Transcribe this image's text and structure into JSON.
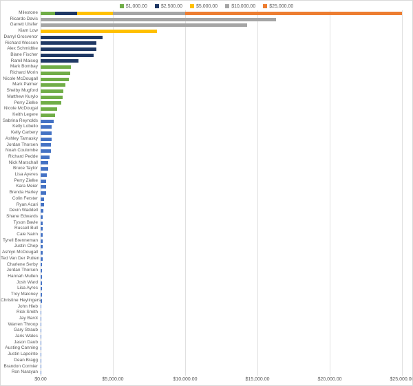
{
  "legend": {
    "position": "top-center",
    "items": [
      {
        "label": "$1,000.00",
        "color": "#70AD47"
      },
      {
        "label": "$2,500.00",
        "color": "#1F3864"
      },
      {
        "label": "$5,000.00",
        "color": "#FFC000"
      },
      {
        "label": "$10,000.00",
        "color": "#A5A5A5"
      },
      {
        "label": "$25,000.00",
        "color": "#ED7D31"
      }
    ]
  },
  "colors": {
    "tier_1000": "#70AD47",
    "tier_2500": "#1F3864",
    "tier_5000": "#FFC000",
    "tier_10000": "#A5A5A5",
    "tier_25000": "#ED7D31",
    "below_milestone": "#4472C4",
    "gridline": "#E0E0E0",
    "axis_text": "#595959"
  },
  "chart_data": {
    "type": "bar",
    "orientation": "horizontal",
    "title": "",
    "xlabel": "",
    "ylabel": "",
    "grid": true,
    "legend_position": "top",
    "xlim": [
      0,
      25000
    ],
    "x_ticks": [
      0,
      5000,
      10000,
      15000,
      20000,
      25000
    ],
    "x_tick_labels": [
      "$0.00",
      "$5,000.00",
      "$10,000.00",
      "$15,000.00",
      "$20,000.00",
      "$25,000.00"
    ],
    "rows": [
      {
        "label": "Milestone",
        "segments": [
          {
            "value": 1000,
            "color": "#70AD47"
          },
          {
            "value": 1500,
            "color": "#1F3864"
          },
          {
            "value": 2500,
            "color": "#FFC000"
          },
          {
            "value": 5000,
            "color": "#A5A5A5"
          },
          {
            "value": 15000,
            "color": "#ED7D31"
          }
        ]
      },
      {
        "label": "Ricardo Davis",
        "value": 16300,
        "color": "#A5A5A5"
      },
      {
        "label": "Garrett Ulsifer",
        "value": 14300,
        "color": "#A5A5A5"
      },
      {
        "label": "Kiam Low",
        "value": 8050,
        "color": "#FFC000"
      },
      {
        "label": "Darryl Grosvenor",
        "value": 4300,
        "color": "#1F3864"
      },
      {
        "label": "Richard Wesson",
        "value": 3875,
        "color": "#1F3864"
      },
      {
        "label": "Alex Schmidtke",
        "value": 3850,
        "color": "#1F3864"
      },
      {
        "label": "Blane Fischer",
        "value": 3650,
        "color": "#1F3864"
      },
      {
        "label": "Ramil Maisog",
        "value": 2620,
        "color": "#1F3864"
      },
      {
        "label": "Mark Bombay",
        "value": 2100,
        "color": "#70AD47"
      },
      {
        "label": "Richard Morin",
        "value": 2050,
        "color": "#70AD47"
      },
      {
        "label": "Nicole McDougall",
        "value": 1975,
        "color": "#70AD47"
      },
      {
        "label": "Mark Palmer",
        "value": 1700,
        "color": "#70AD47"
      },
      {
        "label": "Shelby Mugford",
        "value": 1560,
        "color": "#70AD47"
      },
      {
        "label": "Matthew Kurylo",
        "value": 1530,
        "color": "#70AD47"
      },
      {
        "label": "Perry Zielke",
        "value": 1420,
        "color": "#70AD47"
      },
      {
        "label": "Nicole McDougal",
        "value": 1130,
        "color": "#70AD47"
      },
      {
        "label": "Keith Legere",
        "value": 1010,
        "color": "#70AD47"
      },
      {
        "label": "Sabrina Reynolds",
        "value": 890,
        "color": "#4472C4"
      },
      {
        "label": "Kelly Lobello",
        "value": 780,
        "color": "#4472C4"
      },
      {
        "label": "Kelly Carbery",
        "value": 775,
        "color": "#4472C4"
      },
      {
        "label": "Ashley Tarnasky",
        "value": 770,
        "color": "#4472C4"
      },
      {
        "label": "Jordan Thorsen",
        "value": 730,
        "color": "#4472C4"
      },
      {
        "label": "Noah Coulombe",
        "value": 700,
        "color": "#4472C4"
      },
      {
        "label": "Richard Pedde",
        "value": 605,
        "color": "#4472C4"
      },
      {
        "label": "Nick Marschall",
        "value": 525,
        "color": "#4472C4"
      },
      {
        "label": "Bruce Taylor",
        "value": 500,
        "color": "#4472C4"
      },
      {
        "label": "Lisa Ayeres",
        "value": 420,
        "color": "#4472C4"
      },
      {
        "label": "Perry Zielke",
        "value": 400,
        "color": "#4472C4"
      },
      {
        "label": "Kara Meier",
        "value": 385,
        "color": "#4472C4"
      },
      {
        "label": "Brenda Harley",
        "value": 380,
        "color": "#4472C4"
      },
      {
        "label": "Colin Ferster",
        "value": 250,
        "color": "#4472C4"
      },
      {
        "label": "Ryan Acari",
        "value": 225,
        "color": "#4472C4"
      },
      {
        "label": "Devin Waddell",
        "value": 190,
        "color": "#4472C4"
      },
      {
        "label": "Shane Edwards",
        "value": 165,
        "color": "#4472C4"
      },
      {
        "label": "Tyson Bavle",
        "value": 160,
        "color": "#4472C4"
      },
      {
        "label": "Russell Bull",
        "value": 158,
        "color": "#4472C4"
      },
      {
        "label": "Cale Nairn",
        "value": 150,
        "color": "#4472C4"
      },
      {
        "label": "Tyrell Brenneman",
        "value": 140,
        "color": "#4472C4"
      },
      {
        "label": "Justin Chep",
        "value": 135,
        "color": "#4472C4"
      },
      {
        "label": "Ashlyn McDougall",
        "value": 130,
        "color": "#4472C4"
      },
      {
        "label": "Ted Van Der Putten",
        "value": 120,
        "color": "#4472C4"
      },
      {
        "label": "Charlene Serby",
        "value": 115,
        "color": "#4472C4"
      },
      {
        "label": "Jordan Thorsen",
        "value": 105,
        "color": "#4472C4"
      },
      {
        "label": "Hannah Mullen",
        "value": 100,
        "color": "#4472C4"
      },
      {
        "label": "Josh Ward",
        "value": 90,
        "color": "#4472C4"
      },
      {
        "label": "Lisa Ayres",
        "value": 85,
        "color": "#4472C4"
      },
      {
        "label": "Troy Maloney",
        "value": 80,
        "color": "#4472C4"
      },
      {
        "label": "Christine Heylingers",
        "value": 75,
        "color": "#4472C4"
      },
      {
        "label": "John Hieb",
        "value": 70,
        "color": "#4472C4"
      },
      {
        "label": "Rick Smith",
        "value": 65,
        "color": "#4472C4"
      },
      {
        "label": "Jay Barot",
        "value": 60,
        "color": "#4472C4"
      },
      {
        "label": "Warren Throop",
        "value": 55,
        "color": "#4472C4"
      },
      {
        "label": "Gary Straub",
        "value": 50,
        "color": "#4472C4"
      },
      {
        "label": "Jaris Wales",
        "value": 45,
        "color": "#4472C4"
      },
      {
        "label": "Jason Daub",
        "value": 40,
        "color": "#4472C4"
      },
      {
        "label": "Austing Canning",
        "value": 35,
        "color": "#4472C4"
      },
      {
        "label": "Justin Lapointe",
        "value": 30,
        "color": "#4472C4"
      },
      {
        "label": "Dean Bragg",
        "value": 25,
        "color": "#4472C4"
      },
      {
        "label": "Brandon Cormier",
        "value": 15,
        "color": "#4472C4"
      },
      {
        "label": "Ron Narayan",
        "value": 8,
        "color": "#4472C4"
      }
    ]
  }
}
